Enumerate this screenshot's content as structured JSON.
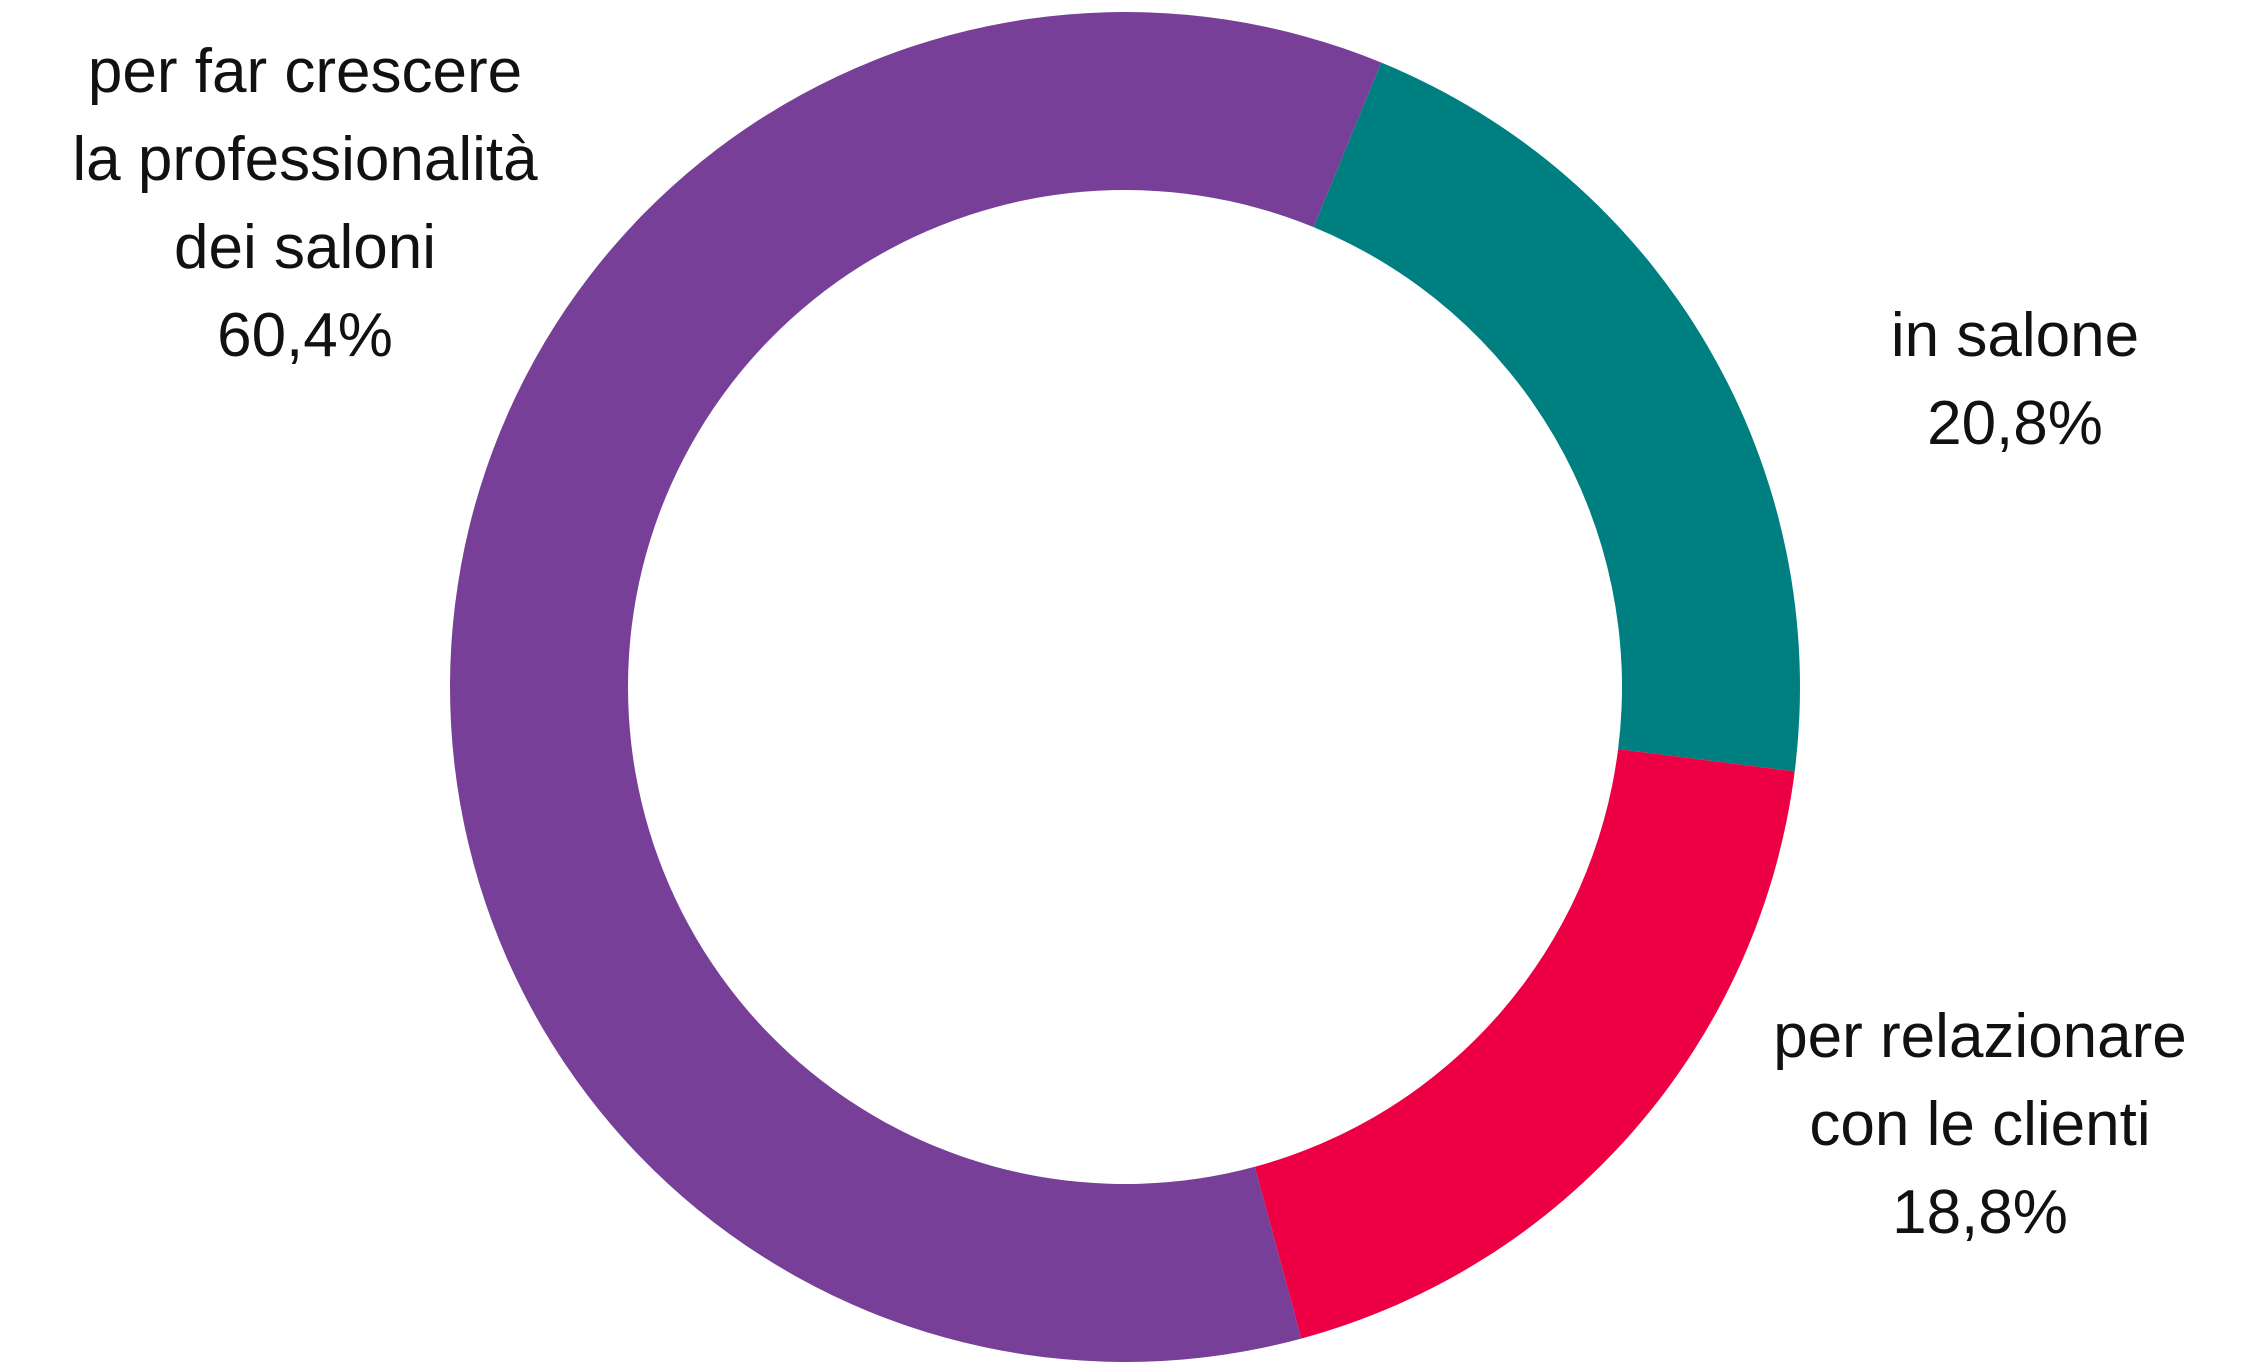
{
  "chart_data": {
    "type": "pie",
    "variant": "donut",
    "slices": [
      {
        "label_lines": [
          "per far crescere",
          "la professionalità",
          "dei saloni"
        ],
        "value": 60.4,
        "value_label": "60,4%",
        "color": "#773F98"
      },
      {
        "label_lines": [
          "in salone"
        ],
        "value": 20.8,
        "value_label": "20,8%",
        "color": "#007F80"
      },
      {
        "label_lines": [
          "per relazionare",
          "con le clienti"
        ],
        "value": 18.8,
        "value_label": "18,8%",
        "color": "#EC0043"
      }
    ],
    "legend": "none",
    "labels_placement": "outside"
  }
}
